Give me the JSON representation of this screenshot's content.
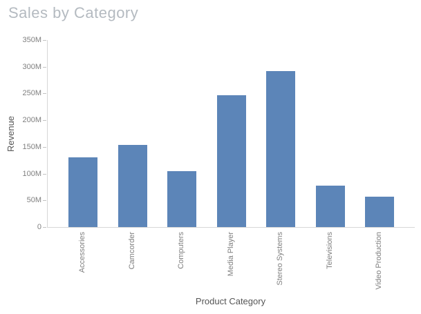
{
  "chart_data": {
    "type": "bar",
    "title": "Sales by Category",
    "xlabel": "Product Category",
    "ylabel": "Revenue",
    "categories": [
      "Accessories",
      "Camcorder",
      "Computers",
      "Media Player",
      "Stereo Systems",
      "Televisions",
      "Video Production"
    ],
    "values": [
      130,
      154,
      105,
      247,
      292,
      78,
      57
    ],
    "value_unit": "M",
    "ylim": [
      0,
      350
    ],
    "y_tick_values": [
      0,
      50,
      100,
      150,
      200,
      250,
      300,
      350
    ],
    "y_tick_labels": [
      "0",
      "50M",
      "100M",
      "150M",
      "200M",
      "250M",
      "300M",
      "350M"
    ],
    "grid": false,
    "legend": false,
    "colors": {
      "bar": "#5C85B8",
      "title": "#B4BAC0",
      "tick_label": "#7F7F7F",
      "axis_label": "#555555",
      "axis_line": "#D6D6D6",
      "tick_mark": "#C2C2C2",
      "background": "#FFFFFF"
    }
  }
}
